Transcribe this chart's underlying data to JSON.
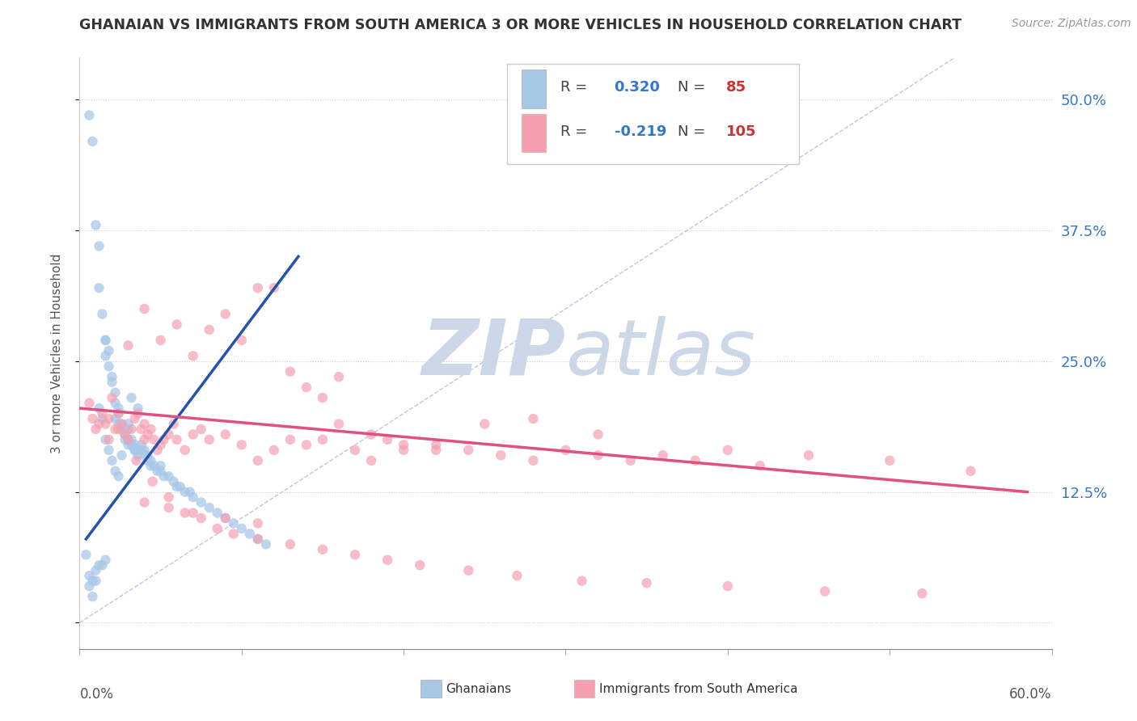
{
  "title": "GHANAIAN VS IMMIGRANTS FROM SOUTH AMERICA 3 OR MORE VEHICLES IN HOUSEHOLD CORRELATION CHART",
  "source_text": "Source: ZipAtlas.com",
  "ylabel": "3 or more Vehicles in Household",
  "ytick_labels": [
    "",
    "12.5%",
    "25.0%",
    "37.5%",
    "50.0%"
  ],
  "ytick_values": [
    0.0,
    0.125,
    0.25,
    0.375,
    0.5
  ],
  "xlim": [
    0.0,
    0.6
  ],
  "ylim": [
    -0.025,
    0.54
  ],
  "blue_R": 0.32,
  "blue_N": 85,
  "pink_R": -0.219,
  "pink_N": 105,
  "blue_color": "#a8c8e8",
  "pink_color": "#f4a0b0",
  "blue_line_color": "#2255aa",
  "pink_line_color": "#e05080",
  "watermark_zip": "ZIP",
  "watermark_atlas": "atlas",
  "watermark_color": "#ccd8e8",
  "legend_R_color": "#3377cc",
  "legend_N_color": "#cc3333",
  "blue_scatter_x": [
    0.006,
    0.008,
    0.01,
    0.012,
    0.012,
    0.014,
    0.016,
    0.016,
    0.016,
    0.018,
    0.018,
    0.02,
    0.02,
    0.022,
    0.022,
    0.022,
    0.024,
    0.024,
    0.024,
    0.026,
    0.026,
    0.026,
    0.028,
    0.028,
    0.03,
    0.03,
    0.03,
    0.032,
    0.032,
    0.034,
    0.034,
    0.036,
    0.036,
    0.038,
    0.038,
    0.04,
    0.04,
    0.042,
    0.042,
    0.044,
    0.044,
    0.046,
    0.048,
    0.05,
    0.05,
    0.052,
    0.055,
    0.058,
    0.06,
    0.062,
    0.065,
    0.068,
    0.07,
    0.075,
    0.08,
    0.085,
    0.09,
    0.095,
    0.1,
    0.105,
    0.11,
    0.115,
    0.012,
    0.014,
    0.016,
    0.018,
    0.02,
    0.022,
    0.024,
    0.026,
    0.028,
    0.03,
    0.032,
    0.034,
    0.036,
    0.004,
    0.006,
    0.008,
    0.006,
    0.008,
    0.01,
    0.01,
    0.012,
    0.014,
    0.016
  ],
  "blue_scatter_y": [
    0.485,
    0.46,
    0.38,
    0.36,
    0.32,
    0.295,
    0.27,
    0.255,
    0.27,
    0.245,
    0.26,
    0.23,
    0.235,
    0.22,
    0.21,
    0.195,
    0.205,
    0.2,
    0.19,
    0.185,
    0.19,
    0.185,
    0.18,
    0.185,
    0.175,
    0.17,
    0.185,
    0.17,
    0.175,
    0.165,
    0.17,
    0.165,
    0.16,
    0.17,
    0.165,
    0.16,
    0.165,
    0.16,
    0.155,
    0.15,
    0.155,
    0.15,
    0.145,
    0.145,
    0.15,
    0.14,
    0.14,
    0.135,
    0.13,
    0.13,
    0.125,
    0.125,
    0.12,
    0.115,
    0.11,
    0.105,
    0.1,
    0.095,
    0.09,
    0.085,
    0.08,
    0.075,
    0.205,
    0.195,
    0.175,
    0.165,
    0.155,
    0.145,
    0.14,
    0.16,
    0.175,
    0.19,
    0.215,
    0.165,
    0.205,
    0.065,
    0.035,
    0.025,
    0.045,
    0.04,
    0.04,
    0.05,
    0.055,
    0.055,
    0.06
  ],
  "pink_scatter_x": [
    0.006,
    0.008,
    0.01,
    0.012,
    0.014,
    0.016,
    0.018,
    0.018,
    0.02,
    0.022,
    0.024,
    0.024,
    0.026,
    0.028,
    0.03,
    0.032,
    0.034,
    0.036,
    0.038,
    0.04,
    0.04,
    0.042,
    0.044,
    0.046,
    0.048,
    0.05,
    0.052,
    0.055,
    0.058,
    0.06,
    0.065,
    0.07,
    0.075,
    0.08,
    0.09,
    0.1,
    0.11,
    0.12,
    0.13,
    0.14,
    0.15,
    0.16,
    0.17,
    0.18,
    0.19,
    0.2,
    0.22,
    0.24,
    0.26,
    0.28,
    0.3,
    0.32,
    0.34,
    0.36,
    0.38,
    0.4,
    0.42,
    0.45,
    0.5,
    0.55,
    0.03,
    0.04,
    0.05,
    0.06,
    0.07,
    0.08,
    0.09,
    0.1,
    0.11,
    0.12,
    0.13,
    0.14,
    0.15,
    0.16,
    0.18,
    0.2,
    0.22,
    0.25,
    0.28,
    0.32,
    0.035,
    0.045,
    0.055,
    0.065,
    0.075,
    0.085,
    0.095,
    0.11,
    0.13,
    0.15,
    0.17,
    0.19,
    0.21,
    0.24,
    0.27,
    0.31,
    0.35,
    0.4,
    0.46,
    0.52,
    0.04,
    0.055,
    0.07,
    0.09,
    0.11
  ],
  "pink_scatter_y": [
    0.21,
    0.195,
    0.185,
    0.19,
    0.2,
    0.19,
    0.175,
    0.195,
    0.215,
    0.185,
    0.2,
    0.185,
    0.19,
    0.18,
    0.175,
    0.185,
    0.195,
    0.2,
    0.185,
    0.175,
    0.19,
    0.18,
    0.185,
    0.175,
    0.165,
    0.17,
    0.175,
    0.18,
    0.19,
    0.175,
    0.165,
    0.18,
    0.185,
    0.175,
    0.18,
    0.17,
    0.155,
    0.165,
    0.175,
    0.17,
    0.175,
    0.19,
    0.165,
    0.18,
    0.175,
    0.165,
    0.17,
    0.165,
    0.16,
    0.155,
    0.165,
    0.16,
    0.155,
    0.16,
    0.155,
    0.165,
    0.15,
    0.16,
    0.155,
    0.145,
    0.265,
    0.3,
    0.27,
    0.285,
    0.255,
    0.28,
    0.295,
    0.27,
    0.32,
    0.32,
    0.24,
    0.225,
    0.215,
    0.235,
    0.155,
    0.17,
    0.165,
    0.19,
    0.195,
    0.18,
    0.155,
    0.135,
    0.12,
    0.105,
    0.1,
    0.09,
    0.085,
    0.08,
    0.075,
    0.07,
    0.065,
    0.06,
    0.055,
    0.05,
    0.045,
    0.04,
    0.038,
    0.035,
    0.03,
    0.028,
    0.115,
    0.11,
    0.105,
    0.1,
    0.095
  ],
  "blue_trend_x": [
    0.004,
    0.135
  ],
  "blue_trend_y": [
    0.08,
    0.35
  ],
  "pink_trend_x": [
    0.0,
    0.585
  ],
  "pink_trend_y": [
    0.205,
    0.125
  ],
  "diag_line_x": [
    0.0,
    0.54
  ],
  "diag_line_y": [
    0.0,
    0.54
  ]
}
